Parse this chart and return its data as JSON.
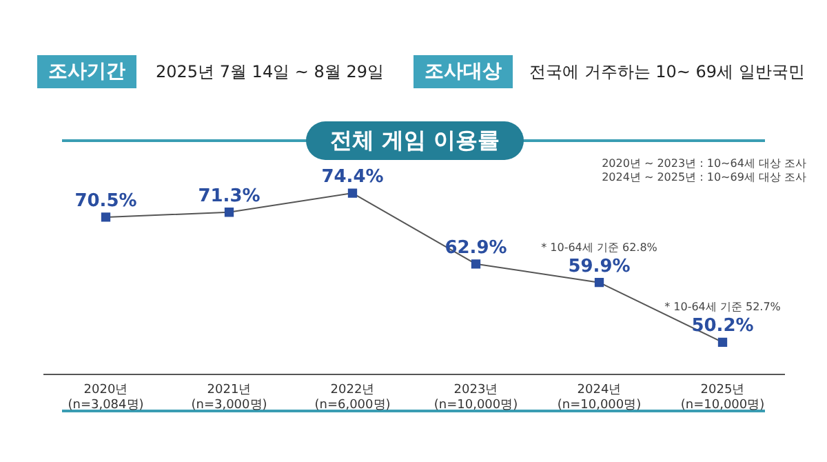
{
  "chart_data": {
    "type": "line",
    "title": "전체 게임 이용률",
    "subtitle": [
      "조사기간",
      "2025년 7월 14일 ~ 8월 29일",
      "조사대상",
      "전국에 거주하는 10~ 69세 일반국민"
    ],
    "categories": [
      "2020년\n(n=3,084명)",
      "2021년\n(n=3,000명)",
      "2022년\n(n=6,000명)",
      "2023년\n(n=10,000명)",
      "2024년\n(n=10,000명)",
      "2025년\n(n=10,000명)"
    ],
    "series": [
      {
        "color": "#2a4ea0",
        "values": [
          70.5,
          71.3,
          74.4,
          62.9,
          59.9,
          50.2
        ],
        "value_labels": [
          "70.5%",
          "71.3%",
          "74.4%",
          "62.9%",
          "59.9%",
          "50.2%"
        ]
      }
    ],
    "tick_labels": "x",
    "grid": false,
    "legend": false,
    "marker": "square",
    "line_style": "solid",
    "annotations": [
      "2020년 ~ 2023년 : 10~64세 대상 조사",
      "2024년 ~ 2025년 : 10~69세 대상 조사",
      {
        "text": "* 10-64세 기준 62.8%",
        "x": "2024년\n(n=10,000명)",
        "y": 59.9
      },
      {
        "text": "* 10-64세 기준 52.7%",
        "x": "2025년\n(n=10,000명)",
        "y": 50.2
      }
    ]
  }
}
